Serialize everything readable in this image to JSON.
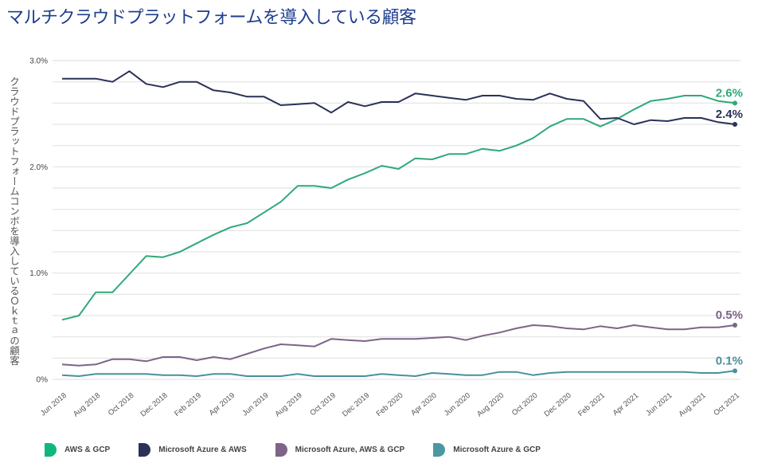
{
  "title": "マルチクラウドプラットフォームを導入している顧客",
  "chart_data": {
    "type": "line",
    "title": "マルチクラウドプラットフォームを導入している顧客",
    "xlabel": "",
    "ylabel": "クラウドプラットフォームコンボを導入しているＯｋｔａの顧客",
    "ylim": [
      0,
      3.0
    ],
    "y_ticks": [
      {
        "value": 0,
        "label": "0%"
      },
      {
        "value": 1.0,
        "label": "1.0%"
      },
      {
        "value": 2.0,
        "label": "2.0%"
      },
      {
        "value": 3.0,
        "label": "3.0%"
      }
    ],
    "y_gridlines": [
      0,
      0.2,
      0.4,
      0.6,
      0.8,
      1.0,
      1.2,
      1.4,
      1.6,
      1.8,
      2.0,
      2.2,
      2.4,
      2.6,
      2.8,
      3.0
    ],
    "grid": true,
    "x": [
      "Jun 2018",
      "Jul 2018",
      "Aug 2018",
      "Sep 2018",
      "Oct 2018",
      "Nov 2018",
      "Dec 2018",
      "Jan 2019",
      "Feb 2019",
      "Mar 2019",
      "Apr 2019",
      "May 2019",
      "Jun 2019",
      "Jul 2019",
      "Aug 2019",
      "Sep 2019",
      "Oct 2019",
      "Nov 2019",
      "Dec 2019",
      "Jan 2020",
      "Feb 2020",
      "Mar 2020",
      "Apr 2020",
      "May 2020",
      "Jun 2020",
      "Jul 2020",
      "Aug 2020",
      "Sep 2020",
      "Oct 2020",
      "Nov 2020",
      "Dec 2020",
      "Jan 2021",
      "Feb 2021",
      "Mar 2021",
      "Apr 2021",
      "May 2021",
      "Jun 2021",
      "Jul 2021",
      "Aug 2021",
      "Sep 2021",
      "Oct 2021"
    ],
    "x_tick_labels": [
      "Jun 2018",
      "Aug 2018",
      "Oct 2018",
      "Dec 2018",
      "Feb 2019",
      "Apr 2019",
      "Jun 2019",
      "Aug 2019",
      "Oct 2019",
      "Dec 2019",
      "Feb 2020",
      "Apr 2020",
      "Jun 2020",
      "Aug 2020",
      "Oct 2020",
      "Dec 2020",
      "Feb 2021",
      "Apr 2021",
      "Jun 2021",
      "Aug 2021",
      "Oct 2021"
    ],
    "legend_position": "bottom",
    "series": [
      {
        "name": "AWS & GCP",
        "color": "#2eaa78",
        "swatch": "#10b77b",
        "end_label": "2.6%",
        "values": [
          0.56,
          0.6,
          0.82,
          0.82,
          0.99,
          1.16,
          1.15,
          1.2,
          1.28,
          1.36,
          1.43,
          1.47,
          1.57,
          1.67,
          1.82,
          1.82,
          1.8,
          1.88,
          1.94,
          2.01,
          1.98,
          2.08,
          2.07,
          2.12,
          2.12,
          2.17,
          2.15,
          2.2,
          2.27,
          2.38,
          2.45,
          2.45,
          2.38,
          2.45,
          2.54,
          2.62,
          2.64,
          2.67,
          2.67,
          2.62,
          2.6
        ]
      },
      {
        "name": "Microsoft Azure & AWS",
        "color": "#2b3157",
        "swatch": "#2b3157",
        "end_label": "2.4%",
        "values": [
          2.83,
          2.83,
          2.83,
          2.8,
          2.9,
          2.78,
          2.75,
          2.8,
          2.8,
          2.72,
          2.7,
          2.66,
          2.66,
          2.58,
          2.59,
          2.6,
          2.51,
          2.61,
          2.57,
          2.61,
          2.61,
          2.69,
          2.67,
          2.65,
          2.63,
          2.67,
          2.67,
          2.64,
          2.63,
          2.69,
          2.64,
          2.62,
          2.45,
          2.46,
          2.4,
          2.44,
          2.43,
          2.46,
          2.46,
          2.42,
          2.4
        ]
      },
      {
        "name": "Microsoft Azure, AWS & GCP",
        "color": "#7d6488",
        "swatch": "#7d6488",
        "end_label": "0.5%",
        "values": [
          0.14,
          0.13,
          0.14,
          0.19,
          0.19,
          0.17,
          0.21,
          0.21,
          0.18,
          0.21,
          0.19,
          0.24,
          0.29,
          0.33,
          0.32,
          0.31,
          0.38,
          0.37,
          0.36,
          0.38,
          0.38,
          0.38,
          0.39,
          0.4,
          0.37,
          0.41,
          0.44,
          0.48,
          0.51,
          0.5,
          0.48,
          0.47,
          0.5,
          0.48,
          0.51,
          0.49,
          0.47,
          0.47,
          0.49,
          0.49,
          0.51
        ]
      },
      {
        "name": "Microsoft Azure & GCP",
        "color": "#48919c",
        "swatch": "#4a98a3",
        "end_label": "0.1%",
        "values": [
          0.04,
          0.03,
          0.05,
          0.05,
          0.05,
          0.05,
          0.04,
          0.04,
          0.03,
          0.05,
          0.05,
          0.03,
          0.03,
          0.03,
          0.05,
          0.03,
          0.03,
          0.03,
          0.03,
          0.05,
          0.04,
          0.03,
          0.06,
          0.05,
          0.04,
          0.04,
          0.07,
          0.07,
          0.04,
          0.06,
          0.07,
          0.07,
          0.07,
          0.07,
          0.07,
          0.07,
          0.07,
          0.07,
          0.06,
          0.06,
          0.08
        ]
      }
    ]
  },
  "legend": [
    {
      "label": "AWS & GCP",
      "color": "#10b77b"
    },
    {
      "label": "Microsoft Azure & AWS",
      "color": "#2b3157"
    },
    {
      "label": "Microsoft Azure, AWS & GCP",
      "color": "#7d6488"
    },
    {
      "label": "Microsoft Azure & GCP",
      "color": "#4a98a3"
    }
  ]
}
